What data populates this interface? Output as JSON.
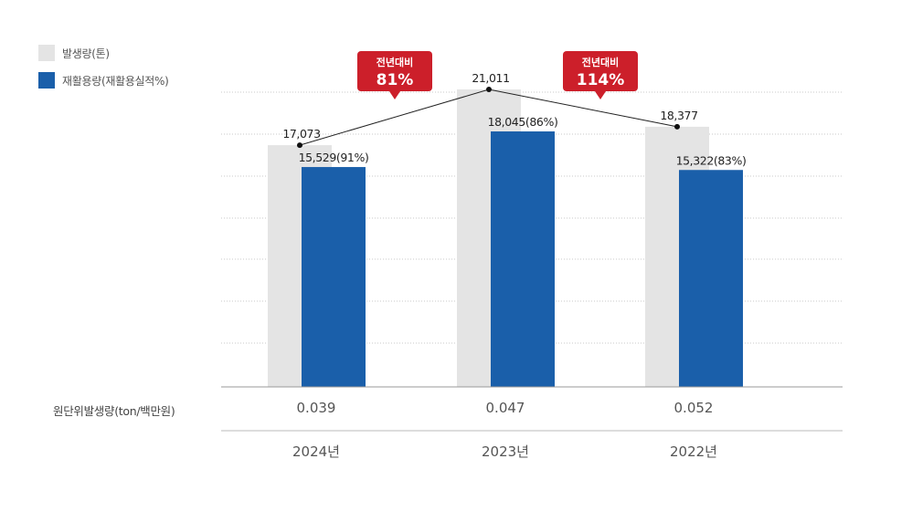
{
  "legend": {
    "items": [
      {
        "label": "발생량(톤)",
        "color": "#e4e4e4"
      },
      {
        "label": "재활용량(재활용실적%)",
        "color": "#1a5faa"
      }
    ]
  },
  "table": {
    "row_label": "원단위발생량(ton/백만원)",
    "unit_values": [
      "0.039",
      "0.047",
      "0.052"
    ],
    "years": [
      "2024년",
      "2023년",
      "2022년"
    ]
  },
  "chart_data": {
    "type": "bar",
    "categories": [
      "2024년",
      "2023년",
      "2022년"
    ],
    "series": [
      {
        "name": "발생량(톤)",
        "values": [
          17073,
          21011,
          18377
        ],
        "labels": [
          "17,073",
          "21,011",
          "18,377"
        ],
        "color": "#e4e4e4"
      },
      {
        "name": "재활용량(재활용실적%)",
        "values": [
          15529,
          18045,
          15322
        ],
        "labels": [
          "15,529(91%)",
          "18,045(86%)",
          "15,322(83%)"
        ],
        "color": "#1a5faa"
      }
    ],
    "callouts": [
      {
        "title": "전년대비",
        "value": "81%",
        "color": "#cc1f2a"
      },
      {
        "title": "전년대비",
        "value": "114%",
        "color": "#cc1f2a"
      }
    ],
    "ylim": [
      0,
      23000
    ],
    "grid": true,
    "legend_position": "top-left"
  }
}
